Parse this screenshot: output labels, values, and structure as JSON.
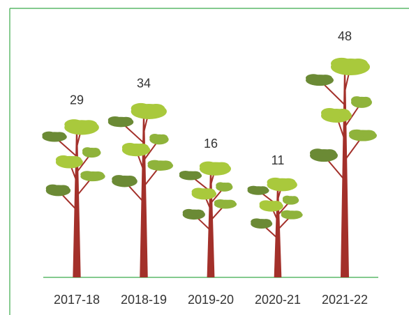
{
  "chart_data": {
    "type": "bar",
    "categories": [
      "2017-18",
      "2018-19",
      "2019-20",
      "2020-21",
      "2021-22"
    ],
    "values": [
      29,
      34,
      16,
      11,
      48
    ]
  }
}
